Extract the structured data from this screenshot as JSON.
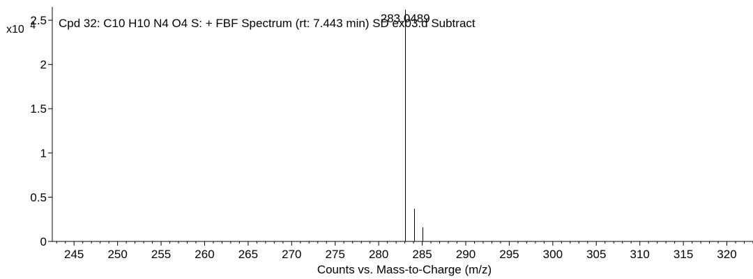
{
  "chart_data": {
    "type": "bar",
    "title": "Cpd 32: C10 H10 N4 O4 S: + FBF Spectrum (rt: 7.443 min) SD ex03.d  Subtract",
    "xlabel": "Counts vs. Mass-to-Charge (m/z)",
    "ylabel": "",
    "y_multiplier_label": "x10",
    "y_multiplier_exponent": "4",
    "xlim": [
      242.5,
      323
    ],
    "ylim": [
      0,
      2.65
    ],
    "x_ticks": [
      245,
      250,
      255,
      260,
      265,
      270,
      275,
      280,
      285,
      290,
      295,
      300,
      305,
      310,
      315,
      320
    ],
    "x_tick_labels": [
      "245",
      "250",
      "255",
      "260",
      "265",
      "270",
      "275",
      "280",
      "285",
      "290",
      "295",
      "300",
      "305",
      "310",
      "315",
      "320"
    ],
    "y_ticks": [
      0,
      0.5,
      1,
      1.5,
      2,
      2.5
    ],
    "y_tick_labels": [
      "0",
      "0.5",
      "1",
      "1.5",
      "2",
      "2.5"
    ],
    "grid": false,
    "series": [
      {
        "x": [
          283.0489,
          284.05,
          285.05
        ],
        "values": [
          2.62,
          0.37,
          0.16
        ]
      }
    ],
    "annotations": [
      {
        "x": 283.0489,
        "y": 2.62,
        "text": "283.0489"
      }
    ]
  }
}
